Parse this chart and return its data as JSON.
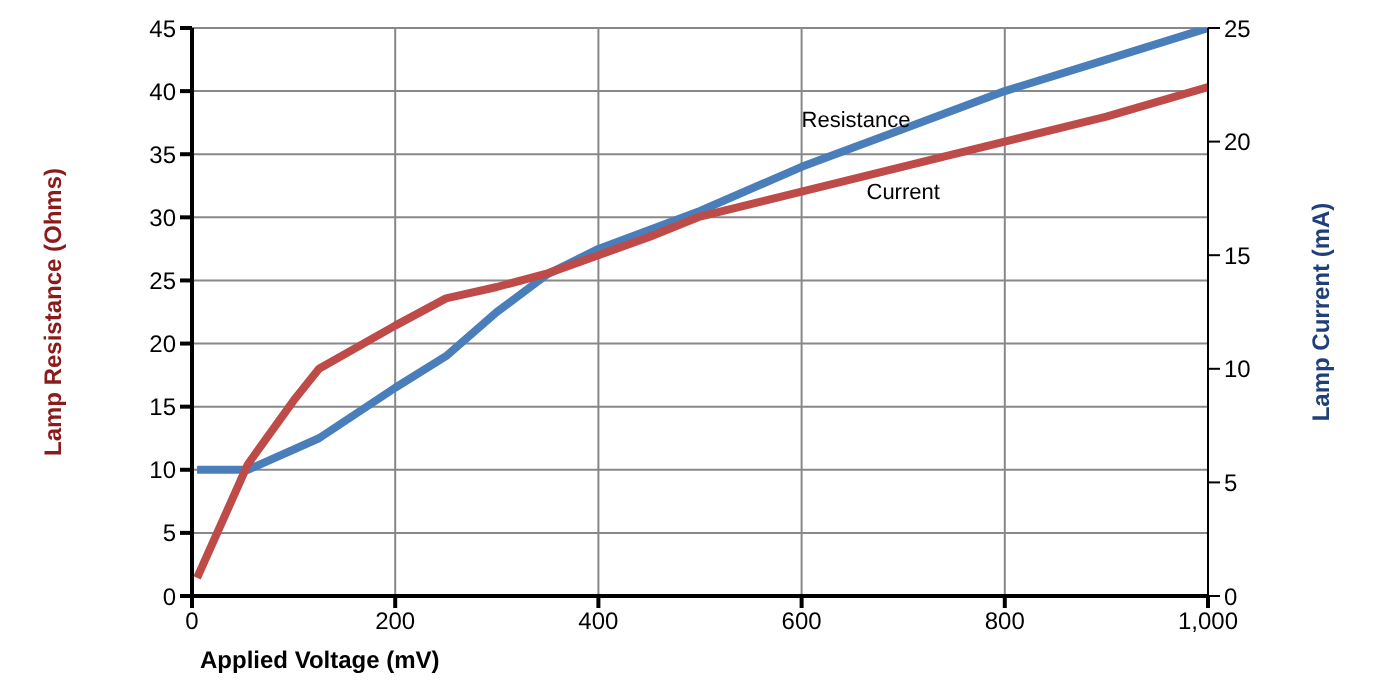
{
  "chart_data": {
    "type": "line",
    "xlabel": "Applied Voltage (mV)",
    "ylabel": "Lamp Resistance (Ohms)",
    "y2label": "Lamp Current (mA)",
    "xlim": [
      0,
      1000
    ],
    "xticks": [
      0,
      200,
      400,
      600,
      800,
      {
        "value": 1000,
        "label": "1,000"
      }
    ],
    "ylim": [
      0,
      45
    ],
    "yticks": [
      0,
      5,
      10,
      15,
      20,
      25,
      30,
      35,
      40,
      45
    ],
    "y2lim": [
      0,
      25
    ],
    "y2ticks": [
      0,
      5,
      10,
      15,
      20,
      25
    ],
    "grid": true,
    "legend": false,
    "marker": "none",
    "line_style": "solid",
    "series": [
      {
        "name": "Resistance",
        "color": "#4a7ebb",
        "x": [
          5,
          55,
          125,
          200,
          250,
          300,
          350,
          400,
          450,
          500,
          600,
          700,
          800,
          900,
          1000
        ],
        "values": [
          10,
          10,
          12.5,
          16.5,
          19,
          22.5,
          25.5,
          27.5,
          29,
          30.5,
          34,
          37,
          40,
          42.5,
          45
        ]
      },
      {
        "name": "Current",
        "color": "#be4b48",
        "axis": "y2",
        "x": [
          5,
          55,
          100,
          125,
          200,
          250,
          300,
          350,
          400,
          450,
          500,
          600,
          700,
          800,
          900,
          1000
        ],
        "values": [
          0.8,
          5.8,
          8.6,
          10,
          11.9,
          13.1,
          13.6,
          14.2,
          15,
          15.8,
          16.7,
          17.8,
          18.9,
          20,
          21.1,
          22.4
        ]
      }
    ]
  }
}
